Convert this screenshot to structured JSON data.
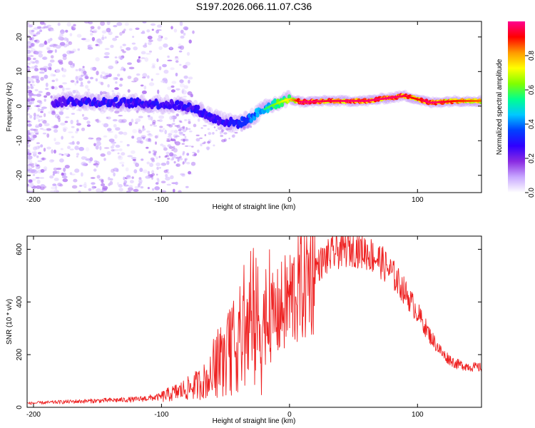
{
  "figure_title": "S197.2026.066.11.07.C36",
  "chart_data": [
    {
      "type": "heatmap",
      "title": "",
      "xlabel": "Height of straight line (km)",
      "ylabel": "Frequency (Hz)",
      "xlim": [
        -205,
        150
      ],
      "ylim": [
        -25,
        24.5
      ],
      "x_ticks": [
        -200,
        -100,
        0,
        100
      ],
      "y_ticks": [
        -20,
        -10,
        0,
        10,
        20
      ],
      "colorbar": {
        "label": "Normalized spectral amplitude",
        "range": [
          0,
          1
        ],
        "ticks": [
          "0.0",
          "0.2",
          "0.4",
          "0.6",
          "0.8"
        ],
        "tick_values": [
          0.0,
          0.2,
          0.4,
          0.6,
          0.8
        ],
        "colormap": [
          "#ffffff",
          "#c8a8ff",
          "#8a2be2",
          "#2f00ff",
          "#0040ff",
          "#00c8ff",
          "#00ff90",
          "#80ff00",
          "#ffff00",
          "#ff9900",
          "#ff0000",
          "#ff0090"
        ]
      },
      "ridge": {
        "x": [
          -185,
          -170,
          -150,
          -130,
          -110,
          -95,
          -80,
          -70,
          -60,
          -50,
          -40,
          -33,
          -25,
          -15,
          -5,
          0,
          10,
          30,
          60,
          80,
          90,
          100,
          110,
          130,
          150
        ],
        "frequency": [
          1.0,
          1.5,
          1.2,
          1.0,
          0.8,
          0.5,
          0.0,
          -1.5,
          -3.5,
          -4.5,
          -5.0,
          -4.0,
          -2.0,
          0.0,
          1.5,
          2.0,
          1.2,
          1.5,
          1.5,
          2.5,
          3.0,
          2.0,
          1.0,
          1.5,
          1.5
        ],
        "amplitude": [
          0.25,
          0.3,
          0.3,
          0.3,
          0.3,
          0.3,
          0.3,
          0.3,
          0.3,
          0.3,
          0.32,
          0.38,
          0.45,
          0.55,
          0.65,
          0.7,
          0.95,
          0.9,
          0.95,
          0.95,
          0.9,
          0.85,
          0.95,
          0.85,
          0.8
        ]
      }
    },
    {
      "type": "line",
      "title": "",
      "xlabel": "Height of straight line (km)",
      "ylabel": "SNR (10 * v/v)",
      "xlim": [
        -205,
        150
      ],
      "ylim": [
        0,
        650
      ],
      "x_ticks": [
        -200,
        -100,
        0,
        100
      ],
      "y_ticks": [
        0,
        200,
        400,
        600
      ],
      "color": "#ee2020",
      "series": [
        {
          "name": "SNR",
          "x": [
            -205,
            -180,
            -150,
            -120,
            -100,
            -90,
            -80,
            -70,
            -60,
            -50,
            -40,
            -30,
            -20,
            -10,
            0,
            10,
            20,
            30,
            40,
            50,
            60,
            70,
            80,
            90,
            100,
            110,
            120,
            130,
            140,
            150
          ],
          "y": [
            15,
            20,
            25,
            30,
            40,
            55,
            70,
            90,
            120,
            180,
            250,
            300,
            320,
            350,
            410,
            470,
            530,
            570,
            600,
            605,
            590,
            560,
            510,
            440,
            360,
            270,
            200,
            165,
            155,
            150
          ]
        }
      ]
    }
  ]
}
